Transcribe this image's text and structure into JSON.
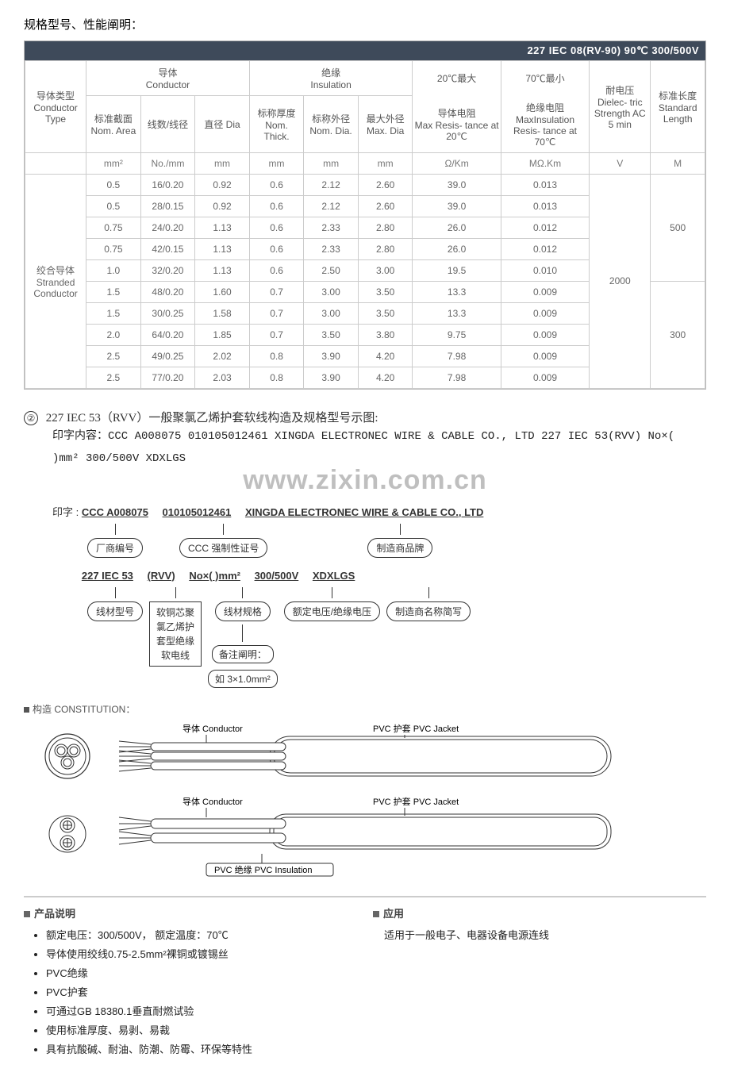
{
  "page_title": "规格型号、性能阐明：",
  "header_bar": "227 IEC 08(RV-90)  90℃ 300/500V",
  "table": {
    "group_headers": {
      "conductor_type": "导体类型\nConductor\nType",
      "conductor_group": "导体\nConductor",
      "insulation_group": "绝缘\nInsulation",
      "resist_20_top": "20℃最大",
      "resist_20_sub": "导体电阻\nMax Resis- tance at 20℃",
      "resist_70_top": "70℃最小",
      "resist_70_sub": "绝缘电阻\nMaxInsulation Resis- tance at 70℃",
      "dielectric": "耐电压\nDielec- tric Strength AC 5 min",
      "std_len": "标准长度\nStandard Length"
    },
    "sub_headers": {
      "nom_area": "标准截面\nNom. Area",
      "strands": "线数/线径",
      "dia": "直径 Dia",
      "nom_thick": "标称厚度\nNom. Thick.",
      "nom_dia": "标称外径\nNom. Dia.",
      "max_dia": "最大外径\nMax. Dia"
    },
    "units": [
      "mm²",
      "No./mm",
      "mm",
      "mm",
      "mm",
      "mm",
      "Ω/Km",
      "MΩ.Km",
      "V",
      "M"
    ],
    "row_label": "绞合导体\nStranded\nConductor",
    "dielectric_value": "2000",
    "std_len_top": "500",
    "std_len_bottom": "300",
    "rows": [
      [
        "0.5",
        "16/0.20",
        "0.92",
        "0.6",
        "2.12",
        "2.60",
        "39.0",
        "0.013"
      ],
      [
        "0.5",
        "28/0.15",
        "0.92",
        "0.6",
        "2.12",
        "2.60",
        "39.0",
        "0.013"
      ],
      [
        "0.75",
        "24/0.20",
        "1.13",
        "0.6",
        "2.33",
        "2.80",
        "26.0",
        "0.012"
      ],
      [
        "0.75",
        "42/0.15",
        "1.13",
        "0.6",
        "2.33",
        "2.80",
        "26.0",
        "0.012"
      ],
      [
        "1.0",
        "32/0.20",
        "1.13",
        "0.6",
        "2.50",
        "3.00",
        "19.5",
        "0.010"
      ],
      [
        "1.5",
        "48/0.20",
        "1.60",
        "0.7",
        "3.00",
        "3.50",
        "13.3",
        "0.009"
      ],
      [
        "1.5",
        "30/0.25",
        "1.58",
        "0.7",
        "3.00",
        "3.50",
        "13.3",
        "0.009"
      ],
      [
        "2.0",
        "64/0.20",
        "1.85",
        "0.7",
        "3.50",
        "3.80",
        "9.75",
        "0.009"
      ],
      [
        "2.5",
        "49/0.25",
        "2.02",
        "0.8",
        "3.90",
        "4.20",
        "7.98",
        "0.009"
      ],
      [
        "2.5",
        "77/0.20",
        "2.03",
        "0.8",
        "3.90",
        "4.20",
        "7.98",
        "0.009"
      ]
    ]
  },
  "section2": {
    "num": "②",
    "title": "227 IEC 53（RVV）一般聚氯乙烯护套软线构造及规格型号示图:",
    "print_label": "印字内容：",
    "print_text": "CCC A008075 010105012461 XINGDA ELECTRONEC WIRE & CABLE CO., LTD 227 IEC 53(RVV) No×(    )mm² 300/500V XDXLGS",
    "watermark": "www.zixin.com.cn"
  },
  "print_diagram": {
    "prefix": "印字 :",
    "line1": [
      "CCC A008075",
      "010105012461",
      "XINGDA ELECTRONEC WIRE & CABLE CO., LTD"
    ],
    "row1_boxes": [
      "厂商编号",
      "CCC 强制性证号",
      "制造商品牌"
    ],
    "line2": [
      "227 IEC 53",
      "(RVV)",
      "No×(  )mm²",
      "300/500V",
      "XDXLGS"
    ],
    "row2_boxes": [
      "线材型号",
      "软铜芯聚\n氯乙烯护\n套型绝缘\n软电线",
      "线材规格",
      "额定电压/绝缘电压",
      "制造商名称简写"
    ],
    "note_title": "备注阐明：",
    "note_body": "如 3×1.0mm²"
  },
  "constitution": {
    "title": "构造 CONSTITUTION：",
    "labels": {
      "conductor": "导体 Conductor",
      "jacket": "PVC 护套 PVC Jacket",
      "insulation": "PVC 绝缘 PVC Insulation"
    }
  },
  "bottom": {
    "left_title": "产品说明",
    "right_title": "应用",
    "left_items": [
      "额定电压：300/500V，  额定温度：70℃",
      "导体使用绞线0.75-2.5mm²裸铜或镀锡丝",
      "PVC绝缘",
      "PVC护套",
      "可通过GB 18380.1垂直耐燃试验",
      "使用标准厚度、易剥、易裁",
      "具有抗酸碱、耐油、防潮、防霉、环保等特性"
    ],
    "right_text": "适用于一般电子、电器设备电源连线"
  }
}
